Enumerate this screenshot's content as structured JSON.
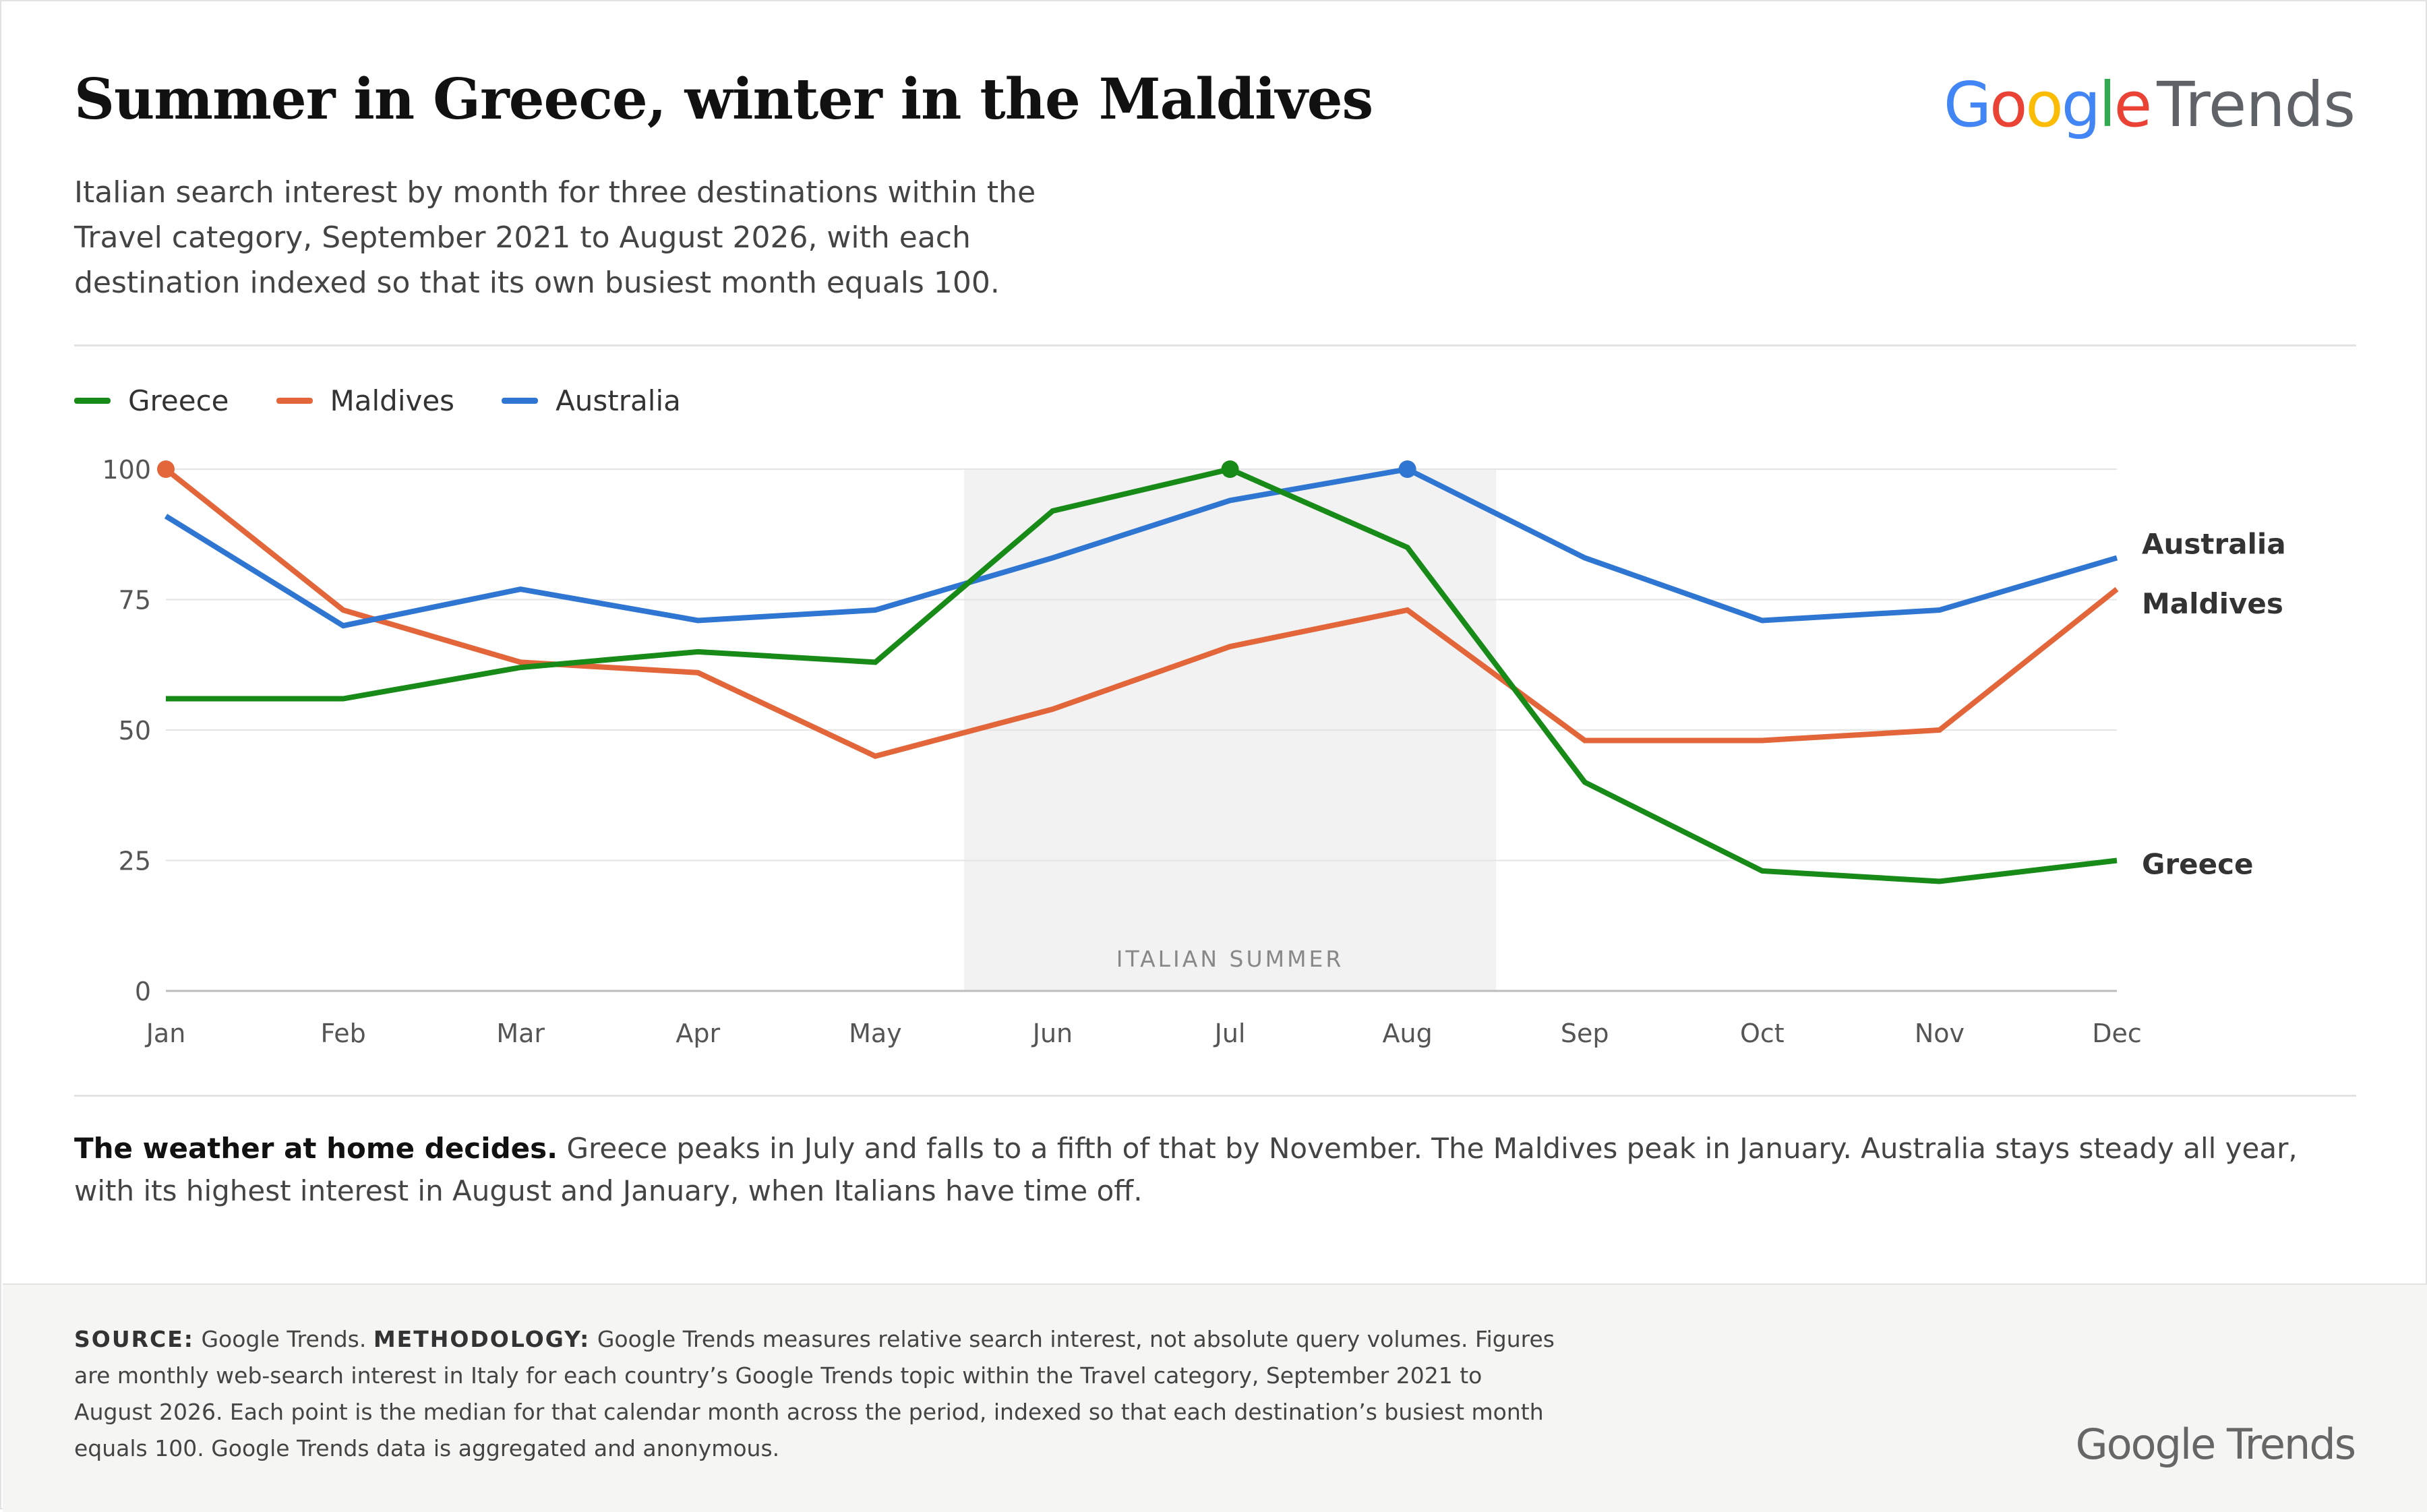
{
  "header": {
    "title": "Summer in Greece, winter in the Maldives",
    "subtitle": "Italian search interest by month for three destinations within the Travel category, September 2021 to August 2026, with each destination indexed so that its own busiest month equals 100.",
    "logo_word1": "Google",
    "logo_word2": "Trends"
  },
  "legend": [
    {
      "name": "Greece",
      "color": "#178a17"
    },
    {
      "name": "Maldives",
      "color": "#e2663a"
    },
    {
      "name": "Australia",
      "color": "#2f76d2"
    }
  ],
  "chart_data": {
    "type": "line",
    "categories": [
      "Jan",
      "Feb",
      "Mar",
      "Apr",
      "May",
      "Jun",
      "Jul",
      "Aug",
      "Sep",
      "Oct",
      "Nov",
      "Dec"
    ],
    "yticks": [
      0,
      25,
      50,
      75,
      100
    ],
    "ylim": [
      0,
      100
    ],
    "grid": true,
    "legend_position": "top-left",
    "series": [
      {
        "name": "Greece",
        "color": "#178a17",
        "end_label": "Greece",
        "peak_index": 6,
        "values": [
          56,
          56,
          62,
          65,
          63,
          92,
          100,
          85,
          40,
          23,
          21,
          25
        ]
      },
      {
        "name": "Maldives",
        "color": "#e2663a",
        "end_label": "Maldives",
        "peak_index": 0,
        "values": [
          100,
          73,
          63,
          61,
          45,
          54,
          66,
          73,
          48,
          48,
          50,
          77
        ]
      },
      {
        "name": "Australia",
        "color": "#2f76d2",
        "end_label": "Australia",
        "peak_index": 7,
        "values": [
          91,
          70,
          77,
          71,
          73,
          83,
          94,
          100,
          83,
          71,
          73,
          83
        ]
      }
    ],
    "shaded_band": {
      "label": "ITALIAN SUMMER",
      "from": "Jun",
      "to": "Aug"
    }
  },
  "note": {
    "lead": "The weather at home decides.",
    "text": " Greece peaks in July and falls to a fifth of that by November. The Maldives peak in January. Australia stays steady all year, with its highest interest in August and January, when Italians have time off."
  },
  "footer": {
    "source_label": "SOURCE:",
    "source_text": " Google Trends. ",
    "method_label": "METHODOLOGY:",
    "method_text": " Google Trends measures relative search interest, not absolute query volumes. Figures are monthly web-search interest in Italy for each country’s Google Trends topic within the Travel category, September 2021 to August 2026. Each point is the median for that calendar month across the period, indexed so that each destination’s busiest month equals 100. Google Trends data is aggregated and anonymous.",
    "logo": "Google Trends"
  }
}
